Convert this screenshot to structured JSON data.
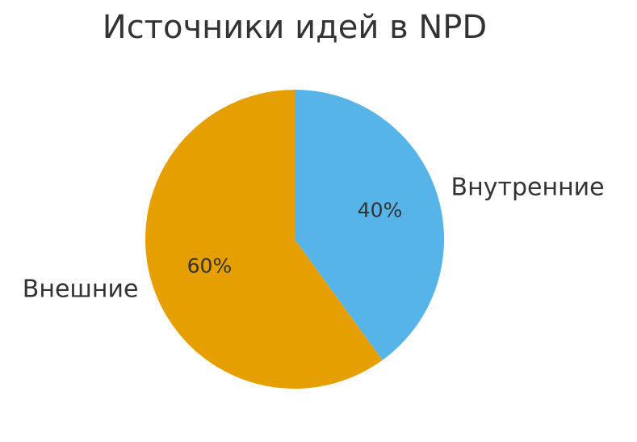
{
  "chart_data": {
    "type": "pie",
    "title": "Источники идей в NPD",
    "categories": [
      "Внешние",
      "Внутренние"
    ],
    "values": [
      60,
      40
    ],
    "value_labels": [
      "60%",
      "40%"
    ],
    "colors": [
      "#e69f00",
      "#56b4e9"
    ]
  }
}
